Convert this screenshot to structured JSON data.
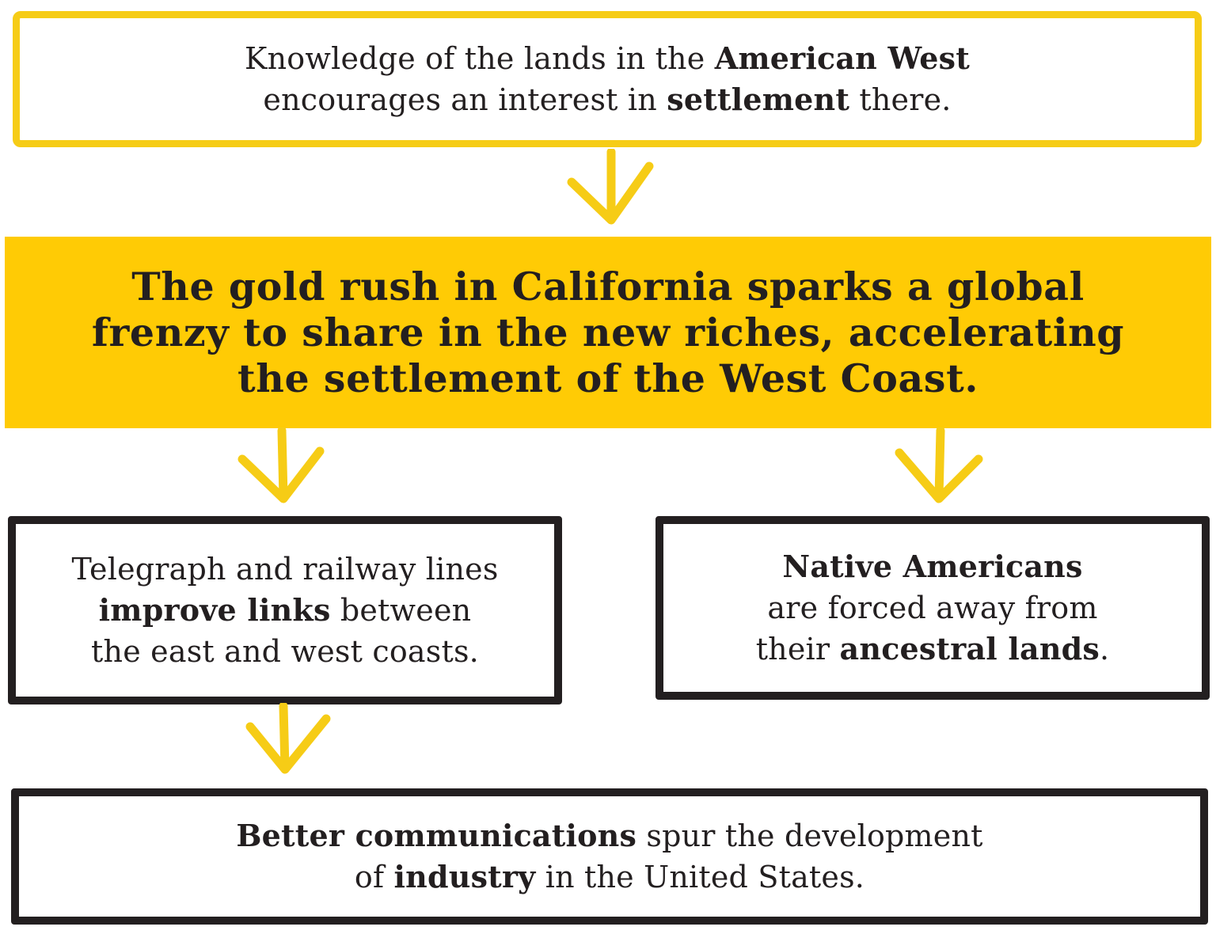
{
  "boxes": {
    "top": {
      "parts": [
        {
          "text": "Knowledge of the lands in the ",
          "bold": false
        },
        {
          "text": "American West",
          "bold": true
        },
        {
          "br": true
        },
        {
          "text": "encourages an interest in ",
          "bold": false
        },
        {
          "text": "settlement",
          "bold": true
        },
        {
          "text": " there.",
          "bold": false
        }
      ]
    },
    "center": {
      "parts": [
        {
          "text": "The gold rush in California sparks a global",
          "bold": true
        },
        {
          "br": true
        },
        {
          "text": "frenzy to share in the new riches, accelerating",
          "bold": true
        },
        {
          "br": true
        },
        {
          "text": "the settlement of the West Coast.",
          "bold": true
        }
      ]
    },
    "left": {
      "parts": [
        {
          "text": "Telegraph and railway lines",
          "bold": false
        },
        {
          "br": true
        },
        {
          "text": "improve links",
          "bold": true
        },
        {
          "text": " between",
          "bold": false
        },
        {
          "br": true
        },
        {
          "text": "the east and west coasts.",
          "bold": false
        }
      ]
    },
    "right": {
      "parts": [
        {
          "text": "Native Americans",
          "bold": true
        },
        {
          "br": true
        },
        {
          "text": "are forced away from",
          "bold": false
        },
        {
          "br": true
        },
        {
          "text": "their ",
          "bold": false
        },
        {
          "text": "ancestral lands",
          "bold": true
        },
        {
          "text": ".",
          "bold": false
        }
      ]
    },
    "bottom": {
      "parts": [
        {
          "text": "Better communications",
          "bold": true
        },
        {
          "text": " spur the development",
          "bold": false
        },
        {
          "br": true
        },
        {
          "text": "of ",
          "bold": false
        },
        {
          "text": "industry",
          "bold": true
        },
        {
          "text": " in the United States.",
          "bold": false
        }
      ]
    }
  },
  "colors": {
    "yellow": "#ffcb05",
    "yellow_outline": "#f6cc16",
    "ink": "#231f20",
    "background": "#ffffff"
  }
}
